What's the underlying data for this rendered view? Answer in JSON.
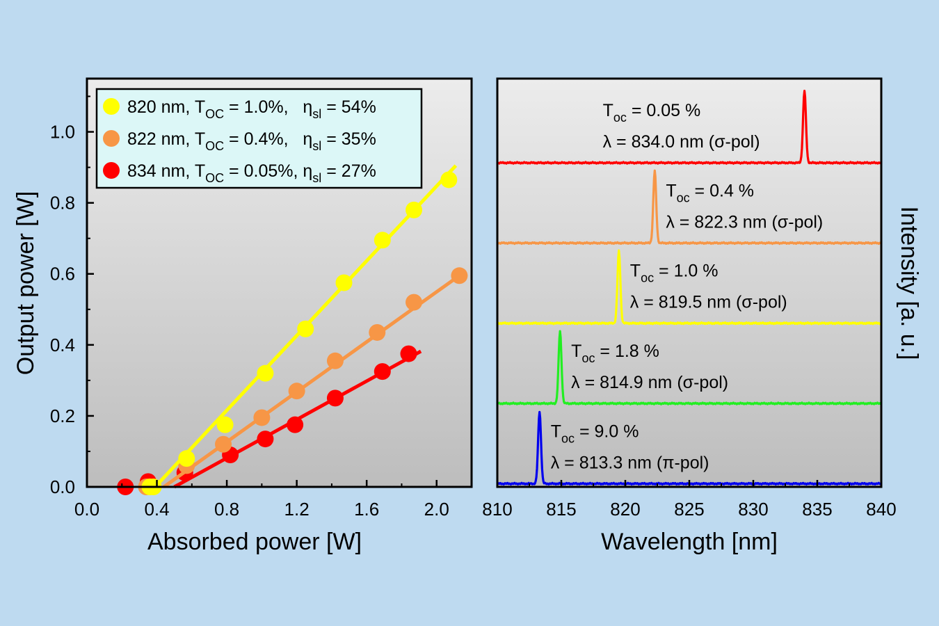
{
  "colors": {
    "background": "#bedaf0",
    "yellow": "#ffff00",
    "orange": "#f79646",
    "red": "#ff0000",
    "green": "#22ee22",
    "blue": "#0000ee",
    "legend_bg": "#dcf7f7"
  },
  "chart_data": [
    {
      "type": "scatter",
      "xlabel": "Absorbed power [W]",
      "ylabel": "Output power [W]",
      "xlim": [
        0.0,
        2.2
      ],
      "ylim": [
        0.0,
        1.15
      ],
      "xticks": [
        "0.0",
        "0.4",
        "0.8",
        "1.2",
        "1.6",
        "2.0"
      ],
      "yticks": [
        "0.0",
        "0.2",
        "0.4",
        "0.6",
        "0.8",
        "1.0"
      ],
      "grid": false,
      "legend_position": "top-left",
      "series": [
        {
          "name": "820 nm, T_OC = 1.0%,   η_sl = 54%",
          "color": "yellow",
          "x": [
            0.36,
            0.38,
            0.57,
            0.79,
            1.02,
            1.25,
            1.47,
            1.69,
            1.87,
            2.07
          ],
          "y": [
            0.0,
            0.0,
            0.08,
            0.175,
            0.32,
            0.445,
            0.575,
            0.695,
            0.78,
            0.865
          ],
          "fit": {
            "x": [
              0.39,
              2.11
            ],
            "y": [
              0.0,
              0.905
            ]
          }
        },
        {
          "name": "822 nm, T_OC = 0.4%,   η_sl = 35%",
          "color": "orange",
          "x": [
            0.34,
            0.57,
            0.78,
            1.0,
            1.2,
            1.42,
            1.66,
            1.87,
            2.13
          ],
          "y": [
            0.0,
            0.06,
            0.12,
            0.195,
            0.27,
            0.355,
            0.435,
            0.52,
            0.595
          ],
          "fit": {
            "x": [
              0.44,
              2.13
            ],
            "y": [
              0.0,
              0.595
            ]
          }
        },
        {
          "name": "834 nm, T_OC = 0.05%, η_sl = 27%",
          "color": "red",
          "x": [
            0.22,
            0.35,
            0.56,
            0.82,
            1.02,
            1.19,
            1.42,
            1.69,
            1.84
          ],
          "y": [
            0.0,
            0.015,
            0.04,
            0.09,
            0.135,
            0.175,
            0.25,
            0.325,
            0.375
          ],
          "fit": {
            "x": [
              0.5,
              1.91
            ],
            "y": [
              0.0,
              0.382
            ]
          }
        }
      ],
      "legend": [
        {
          "color": "yellow",
          "prefix": "820 nm, T",
          "sub": "OC",
          "mid": " = 1.0%,   η",
          "sub2": "sl",
          "suffix": " = 54%"
        },
        {
          "color": "orange",
          "prefix": "822 nm, T",
          "sub": "OC",
          "mid": " = 0.4%,   η",
          "sub2": "sl",
          "suffix": " = 35%"
        },
        {
          "color": "red",
          "prefix": "834 nm, T",
          "sub": "OC",
          "mid": " = 0.05%, η",
          "sub2": "sl",
          "suffix": " = 27%"
        }
      ]
    },
    {
      "type": "line",
      "xlabel": "Wavelength [nm]",
      "ylabel": "Intensity [a. u.]",
      "xlim": [
        810,
        840
      ],
      "xticks": [
        "810",
        "815",
        "820",
        "825",
        "830",
        "835",
        "840"
      ],
      "grid": false,
      "series": [
        {
          "color": "red",
          "center": 834.0,
          "offset": 4,
          "height": 0.9,
          "width": 0.16,
          "toc_value": " = 0.05 %",
          "lambda_text": "λ = 834.0 nm (σ-pol)"
        },
        {
          "color": "orange",
          "center": 822.3,
          "offset": 3,
          "height": 0.9,
          "width": 0.16,
          "toc_value": " = 0.4 %",
          "lambda_text": "λ = 822.3 nm (σ-pol)"
        },
        {
          "color": "yellow",
          "center": 819.5,
          "offset": 2,
          "height": 0.9,
          "width": 0.16,
          "toc_value": " = 1.0 %",
          "lambda_text": "λ = 819.5 nm (σ-pol)"
        },
        {
          "color": "green",
          "center": 814.9,
          "offset": 1,
          "height": 0.9,
          "width": 0.16,
          "toc_value": " = 1.8 %",
          "lambda_text": "λ = 814.9 nm (σ-pol)"
        },
        {
          "color": "blue",
          "center": 813.3,
          "offset": 0,
          "height": 0.9,
          "width": 0.16,
          "toc_value": " = 9.0 %",
          "lambda_text": "λ = 813.3 nm (π-pol)"
        }
      ],
      "annotation_symbol": "T",
      "annotation_sub": "oc"
    }
  ]
}
